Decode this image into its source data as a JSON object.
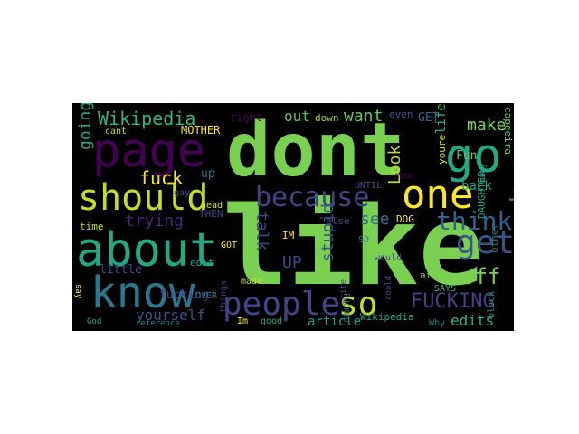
{
  "word_cloud": {
    "background": "#000000",
    "words": [
      {
        "text": "dont",
        "color": "#7ad151"
      },
      {
        "text": "like",
        "color": "#7ad151"
      },
      {
        "text": "page",
        "color": "#440154"
      },
      {
        "text": "about",
        "color": "#22a884"
      },
      {
        "text": "know",
        "color": "#2a788e"
      },
      {
        "text": "go",
        "color": "#22a884"
      },
      {
        "text": "one",
        "color": "#fde725"
      },
      {
        "text": "should",
        "color": "#c2df23"
      },
      {
        "text": "people",
        "color": "#414487"
      },
      {
        "text": "because",
        "color": "#414487"
      },
      {
        "text": "Wikipedia",
        "color": "#35b779"
      },
      {
        "text": "so",
        "color": "#c2df23"
      },
      {
        "text": "get",
        "color": "#3b528b"
      },
      {
        "text": "think",
        "color": "#355f8d"
      },
      {
        "text": "FUCKING",
        "color": "#433e85"
      },
      {
        "text": "off",
        "color": "#7ad151"
      },
      {
        "text": "stop",
        "color": "#21908d"
      },
      {
        "text": "make",
        "color": "#7ad151"
      },
      {
        "text": "want",
        "color": "#5ec962"
      },
      {
        "text": "out",
        "color": "#5ec962"
      },
      {
        "text": "going",
        "color": "#21a585"
      },
      {
        "text": "fuck",
        "color": "#fde725"
      },
      {
        "text": "Look",
        "color": "#b5de2b"
      },
      {
        "text": "talk",
        "color": "#3e4989"
      },
      {
        "text": "stupid",
        "color": "#3b528b"
      },
      {
        "text": "see",
        "color": "#2c728e"
      },
      {
        "text": "UP",
        "color": "#3e4989"
      },
      {
        "text": "trying",
        "color": "#482878"
      },
      {
        "text": "yourself",
        "color": "#3b528b"
      },
      {
        "text": "edits",
        "color": "#2fb47c"
      },
      {
        "text": "article",
        "color": "#1f9e89"
      },
      {
        "text": "back",
        "color": "#22a884"
      },
      {
        "text": "life",
        "color": "#35b779"
      },
      {
        "text": "little",
        "color": "#3e4989"
      },
      {
        "text": "fucking",
        "color": "#3f4788"
      },
      {
        "text": "up",
        "color": "#2a788e"
      },
      {
        "text": "Fun",
        "color": "#5ec962"
      },
      {
        "text": "GET",
        "color": "#31688e"
      },
      {
        "text": "even",
        "color": "#3b528b"
      },
      {
        "text": "right",
        "color": "#440154"
      },
      {
        "text": "MOTHER",
        "color": "#fde725"
      },
      {
        "text": "down",
        "color": "#a0da39"
      },
      {
        "text": "youre",
        "color": "#dde318"
      },
      {
        "text": "capeeira",
        "color": "#6ccd5a"
      },
      {
        "text": "DAUGHTER",
        "color": "#20a386"
      },
      {
        "text": "other",
        "color": "#26828e"
      },
      {
        "text": "time",
        "color": "#c2df23"
      },
      {
        "text": "edit",
        "color": "#20a386"
      },
      {
        "text": "THEN",
        "color": "#3e4989"
      },
      {
        "text": "made",
        "color": "#c2df23"
      },
      {
        "text": "head",
        "color": "#cae11f"
      },
      {
        "text": "gay",
        "color": "#3e4989"
      },
      {
        "text": "DOG",
        "color": "#fde725"
      },
      {
        "text": "UNTIL",
        "color": "#3b528b"
      },
      {
        "text": "SONS",
        "color": "#440154"
      },
      {
        "text": "SO",
        "color": "#2a788e"
      },
      {
        "text": "would",
        "color": "#3e4989"
      },
      {
        "text": "after",
        "color": "#7ad151"
      },
      {
        "text": "SAYS",
        "color": "#35b779"
      },
      {
        "text": "Why",
        "color": "#2a788e"
      },
      {
        "text": "block",
        "color": "#21918c"
      },
      {
        "text": "good",
        "color": "#22a884"
      },
      {
        "text": "Im",
        "color": "#fde725"
      },
      {
        "text": "things",
        "color": "#46327e"
      },
      {
        "text": "FUCKED",
        "color": "#2a788e"
      },
      {
        "text": "Wikipedia",
        "color": "#22a884"
      },
      {
        "text": "OVER",
        "color": "#2c728e"
      },
      {
        "text": "GOT",
        "color": "#fde725"
      },
      {
        "text": "God",
        "color": "#22a884"
      },
      {
        "text": "cant",
        "color": "#c2df23"
      },
      {
        "text": "say",
        "color": "#fde725"
      },
      {
        "text": "else",
        "color": "#3b528b"
      },
      {
        "text": "write",
        "color": "#3e4989"
      },
      {
        "text": "could",
        "color": "#3e4989"
      },
      {
        "text": "many",
        "color": "#1f9e89"
      },
      {
        "text": "reference",
        "color": "#26828e"
      },
      {
        "text": "IM",
        "color": "#fde725"
      }
    ]
  }
}
